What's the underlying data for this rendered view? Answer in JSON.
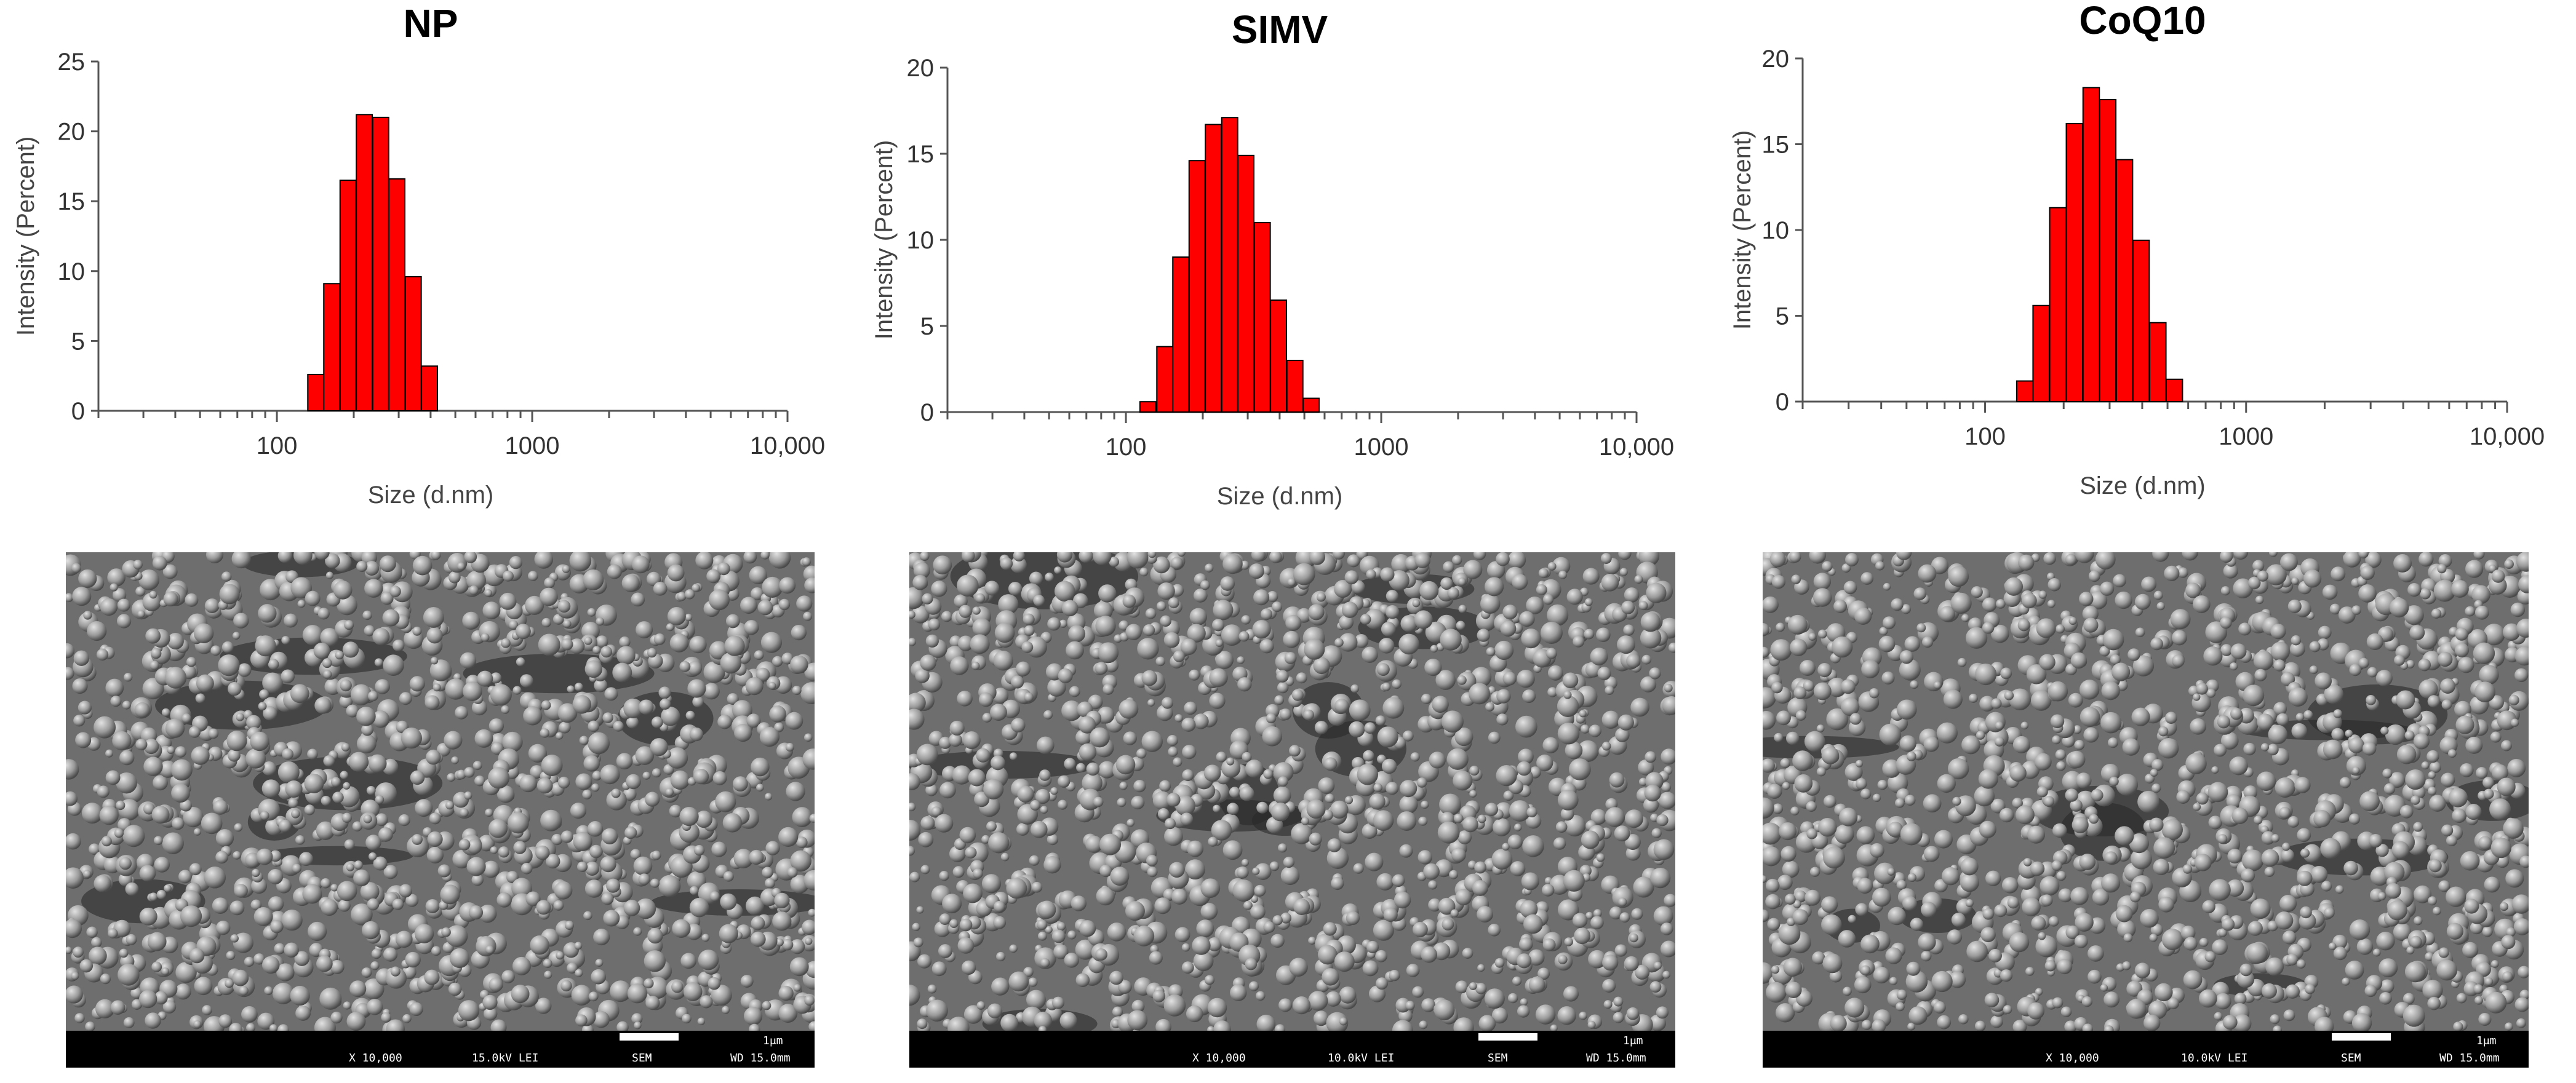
{
  "chart_data": [
    {
      "type": "bar",
      "title": "NP",
      "xlabel": "Size (d.nm)",
      "ylabel": "Intensity (Percent)",
      "xscale": "log",
      "xlim": [
        20,
        10000
      ],
      "ylim": [
        0,
        25
      ],
      "yticks": [
        0,
        5,
        10,
        15,
        20,
        25
      ],
      "xtick_labels": [
        "100",
        "1000",
        "10,000"
      ],
      "bar_color": "#ff0000",
      "bins": [
        {
          "size": 142,
          "value": 2.6
        },
        {
          "size": 164,
          "value": 9.1
        },
        {
          "size": 190,
          "value": 16.5
        },
        {
          "size": 220,
          "value": 21.2
        },
        {
          "size": 255,
          "value": 21.0
        },
        {
          "size": 295,
          "value": 16.6
        },
        {
          "size": 342,
          "value": 9.6
        },
        {
          "size": 396,
          "value": 3.2
        }
      ]
    },
    {
      "type": "bar",
      "title": "SIMV",
      "xlabel": "Size (d.nm)",
      "ylabel": "Intensity (Percent)",
      "xscale": "log",
      "xlim": [
        20,
        10000
      ],
      "ylim": [
        0,
        20
      ],
      "yticks": [
        0,
        5,
        10,
        15,
        20
      ],
      "xtick_labels": [
        "100",
        "1000",
        "10,000"
      ],
      "bar_color": "#ff0000",
      "bins": [
        {
          "size": 122,
          "value": 0.6
        },
        {
          "size": 142,
          "value": 3.8
        },
        {
          "size": 164,
          "value": 9.0
        },
        {
          "size": 190,
          "value": 14.6
        },
        {
          "size": 220,
          "value": 16.7
        },
        {
          "size": 255,
          "value": 17.1
        },
        {
          "size": 295,
          "value": 14.9
        },
        {
          "size": 342,
          "value": 11.0
        },
        {
          "size": 396,
          "value": 6.5
        },
        {
          "size": 459,
          "value": 3.0
        },
        {
          "size": 531,
          "value": 0.8
        }
      ]
    },
    {
      "type": "bar",
      "title": "CoQ10",
      "xlabel": "Size (d.nm)",
      "ylabel": "Intensity (Percent)",
      "xscale": "log",
      "xlim": [
        20,
        10000
      ],
      "ylim": [
        0,
        20
      ],
      "yticks": [
        0,
        5,
        10,
        15,
        20
      ],
      "xtick_labels": [
        "100",
        "1000",
        "10,000"
      ],
      "bar_color": "#ff0000",
      "bins": [
        {
          "size": 142,
          "value": 1.2
        },
        {
          "size": 164,
          "value": 5.6
        },
        {
          "size": 190,
          "value": 11.3
        },
        {
          "size": 220,
          "value": 16.2
        },
        {
          "size": 255,
          "value": 18.3
        },
        {
          "size": 295,
          "value": 17.6
        },
        {
          "size": 342,
          "value": 14.1
        },
        {
          "size": 396,
          "value": 9.4
        },
        {
          "size": 459,
          "value": 4.6
        },
        {
          "size": 531,
          "value": 1.3
        }
      ]
    }
  ],
  "sem_images": [
    {
      "mag": "X 10,000",
      "kv": "15.0kV LEI",
      "detector": "SEM",
      "wd": "WD 15.0mm",
      "scale": "1μm"
    },
    {
      "mag": "X 10,000",
      "kv": "10.0kV LEI",
      "detector": "SEM",
      "wd": "WD 15.0mm",
      "scale": "1μm"
    },
    {
      "mag": "X 10,000",
      "kv": "10.0kV LEI",
      "detector": "SEM",
      "wd": "WD 15.0mm",
      "scale": "1μm"
    }
  ]
}
